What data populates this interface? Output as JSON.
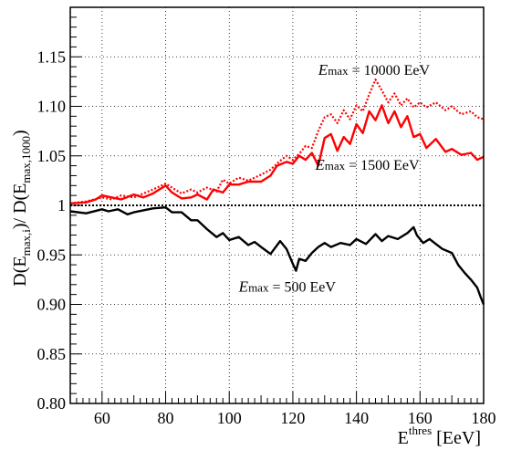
{
  "chart_data": {
    "type": "line",
    "ylabel_parts": {
      "main": "D(E",
      "sub1": "max,i",
      "mid": ")/ D(E",
      "sub2": "max,1000",
      "end": ")"
    },
    "xlabel_parts": {
      "main": "E",
      "sup": "thres",
      "unit": " [EeV]"
    },
    "xlim": [
      50,
      180
    ],
    "ylim": [
      0.8,
      1.2
    ],
    "xticks": [
      60,
      80,
      100,
      120,
      140,
      160,
      180
    ],
    "xtick_labels": [
      "60",
      "80",
      "100",
      "120",
      "140",
      "160",
      "180"
    ],
    "yticks": [
      0.8,
      0.85,
      0.9,
      0.95,
      1.0,
      1.05,
      1.1,
      1.15
    ],
    "ytick_labels": [
      "0.80",
      "0.85",
      "0.90",
      "0.95",
      "1",
      "1.05",
      "1.10",
      "1.15"
    ],
    "grid": true,
    "reference_line": 1.0,
    "annotations": [
      {
        "prefix": "E",
        "sub": "max",
        "text": " = 10000 EeV",
        "x": 128,
        "y": 1.132
      },
      {
        "prefix": "E",
        "sub": "max",
        "text": " = 1500 EeV",
        "x": 127,
        "y": 1.036
      },
      {
        "prefix": "E",
        "sub": "max",
        "text": " = 500 EeV",
        "x": 103,
        "y": 0.913
      }
    ],
    "series": [
      {
        "color": "#000000",
        "style": "solid",
        "x": [
          50,
          55,
          60,
          62,
          65,
          68,
          70,
          73,
          76,
          80,
          82,
          85,
          88,
          90,
          93,
          96,
          98,
          100,
          103,
          106,
          108,
          110,
          113,
          116,
          118,
          120,
          121,
          122,
          124,
          126,
          128,
          130,
          132,
          135,
          138,
          140,
          143,
          146,
          148,
          150,
          153,
          156,
          158,
          159,
          161,
          163,
          165,
          167,
          170,
          172,
          174,
          176,
          178,
          179,
          180
        ],
        "y": [
          0.994,
          0.992,
          0.996,
          0.994,
          0.996,
          0.991,
          0.993,
          0.995,
          0.997,
          0.998,
          0.993,
          0.993,
          0.985,
          0.985,
          0.976,
          0.968,
          0.972,
          0.965,
          0.968,
          0.96,
          0.963,
          0.958,
          0.951,
          0.964,
          0.956,
          0.941,
          0.934,
          0.946,
          0.944,
          0.952,
          0.958,
          0.962,
          0.958,
          0.962,
          0.96,
          0.966,
          0.961,
          0.971,
          0.964,
          0.969,
          0.966,
          0.972,
          0.978,
          0.97,
          0.962,
          0.966,
          0.961,
          0.956,
          0.952,
          0.94,
          0.932,
          0.925,
          0.917,
          0.908,
          0.9
        ]
      },
      {
        "color": "#ff0000",
        "style": "solid",
        "x": [
          50,
          55,
          58,
          60,
          63,
          66,
          70,
          73,
          76,
          80,
          82,
          85,
          88,
          90,
          93,
          95,
          98,
          100,
          103,
          106,
          110,
          113,
          115,
          118,
          120,
          122,
          124,
          126,
          128,
          130,
          132,
          134,
          136,
          138,
          140,
          142,
          144,
          146,
          148,
          150,
          152,
          154,
          156,
          158,
          160,
          162,
          165,
          168,
          170,
          173,
          176,
          178,
          180
        ],
        "y": [
          1.002,
          1.003,
          1.006,
          1.01,
          1.008,
          1.006,
          1.011,
          1.008,
          1.012,
          1.02,
          1.013,
          1.007,
          1.008,
          1.011,
          1.006,
          1.016,
          1.013,
          1.021,
          1.021,
          1.024,
          1.024,
          1.03,
          1.04,
          1.044,
          1.042,
          1.05,
          1.046,
          1.053,
          1.04,
          1.068,
          1.072,
          1.055,
          1.069,
          1.062,
          1.082,
          1.073,
          1.095,
          1.086,
          1.101,
          1.083,
          1.095,
          1.079,
          1.09,
          1.069,
          1.072,
          1.058,
          1.067,
          1.054,
          1.057,
          1.051,
          1.053,
          1.046,
          1.049
        ]
      },
      {
        "color": "#ff0000",
        "style": "dotted",
        "x": [
          50,
          55,
          60,
          63,
          66,
          70,
          73,
          76,
          80,
          82,
          85,
          88,
          90,
          93,
          96,
          98,
          100,
          103,
          106,
          110,
          113,
          116,
          118,
          120,
          122,
          124,
          126,
          128,
          130,
          132,
          134,
          136,
          138,
          140,
          142,
          144,
          146,
          148,
          150,
          152,
          154,
          156,
          158,
          160,
          162,
          165,
          168,
          170,
          173,
          176,
          178,
          180
        ],
        "y": [
          1.002,
          1.004,
          1.008,
          1.006,
          1.01,
          1.008,
          1.012,
          1.016,
          1.022,
          1.018,
          1.012,
          1.016,
          1.013,
          1.018,
          1.014,
          1.026,
          1.022,
          1.028,
          1.025,
          1.031,
          1.036,
          1.045,
          1.05,
          1.046,
          1.052,
          1.06,
          1.058,
          1.075,
          1.089,
          1.092,
          1.083,
          1.096,
          1.087,
          1.101,
          1.095,
          1.112,
          1.127,
          1.116,
          1.104,
          1.113,
          1.101,
          1.108,
          1.099,
          1.104,
          1.099,
          1.104,
          1.096,
          1.1,
          1.092,
          1.095,
          1.089,
          1.087
        ]
      }
    ]
  }
}
